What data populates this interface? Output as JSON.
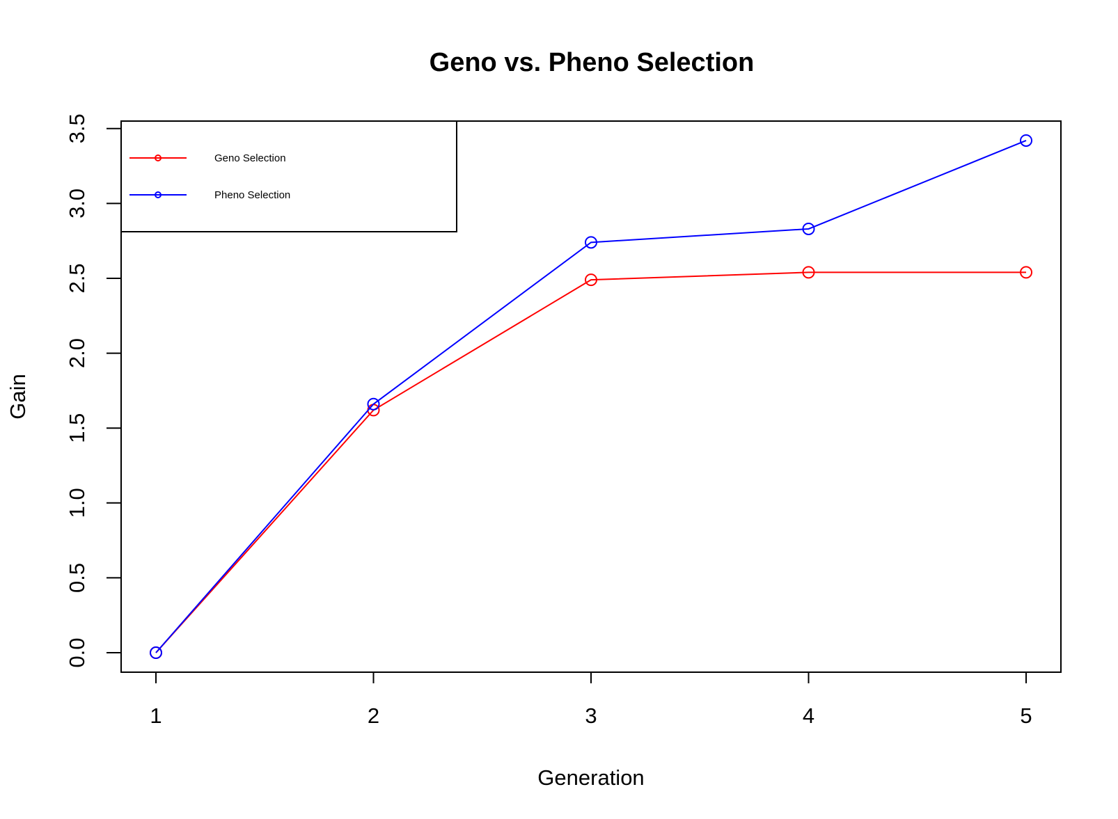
{
  "chart_data": {
    "type": "line",
    "title": "Geno vs. Pheno Selection",
    "xlabel": "Generation",
    "ylabel": "Gain",
    "x": [
      1,
      2,
      3,
      4,
      5
    ],
    "xlim": [
      0.84,
      5.16
    ],
    "ylim": [
      -0.13,
      3.55
    ],
    "x_ticks": [
      "1",
      "2",
      "3",
      "4",
      "5"
    ],
    "y_ticks": [
      "0.0",
      "0.5",
      "1.0",
      "1.5",
      "2.0",
      "2.5",
      "3.0",
      "3.5"
    ],
    "grid": false,
    "legend_position": "top-left",
    "series": [
      {
        "name": "Geno Selection",
        "color": "#ff0000",
        "values": [
          0.0,
          1.62,
          2.49,
          2.54,
          2.54
        ]
      },
      {
        "name": "Pheno Selection",
        "color": "#0000ff",
        "values": [
          0.0,
          1.66,
          2.74,
          2.83,
          3.42
        ]
      }
    ]
  }
}
